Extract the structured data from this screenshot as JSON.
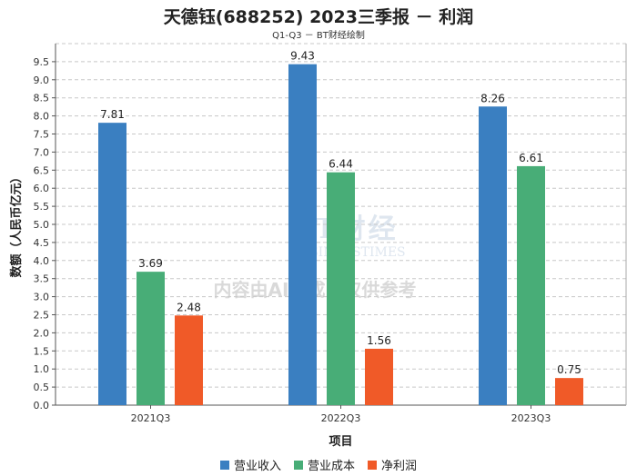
{
  "chart_data": {
    "type": "bar",
    "title": "天德钰(688252) 2023三季报 － 利润",
    "subtitle": "Q1-Q3 － BT财经绘制",
    "xlabel": "项目",
    "ylabel": "数额（人民币亿元）",
    "ylim": [
      0,
      10.0
    ],
    "yticks": [
      "0.0",
      "0.5",
      "1.0",
      "1.5",
      "2.0",
      "2.5",
      "3.0",
      "3.5",
      "4.0",
      "4.5",
      "5.0",
      "5.5",
      "6.0",
      "6.5",
      "7.0",
      "7.5",
      "8.0",
      "8.5",
      "9.0",
      "9.5"
    ],
    "categories": [
      "2021Q3",
      "2022Q3",
      "2023Q3"
    ],
    "series": [
      {
        "name": "营业收入",
        "color": "#3a7fc1",
        "values": [
          7.81,
          9.43,
          8.26
        ],
        "labels": [
          "7.81",
          "9.43",
          "8.26"
        ]
      },
      {
        "name": "营业成本",
        "color": "#48ad77",
        "values": [
          3.69,
          6.44,
          6.61
        ],
        "labels": [
          "3.69",
          "6.44",
          "6.61"
        ]
      },
      {
        "name": "净利润",
        "color": "#f05a28",
        "values": [
          2.48,
          1.56,
          0.75
        ],
        "labels": [
          "2.48",
          "1.56",
          "0.75"
        ]
      }
    ],
    "grid": true,
    "legend": "bottom-center"
  },
  "watermark": {
    "brand": "BT财经",
    "brand_en": "BUSINESSTIMES",
    "notice": "内容由AI生成，仅供参考"
  }
}
